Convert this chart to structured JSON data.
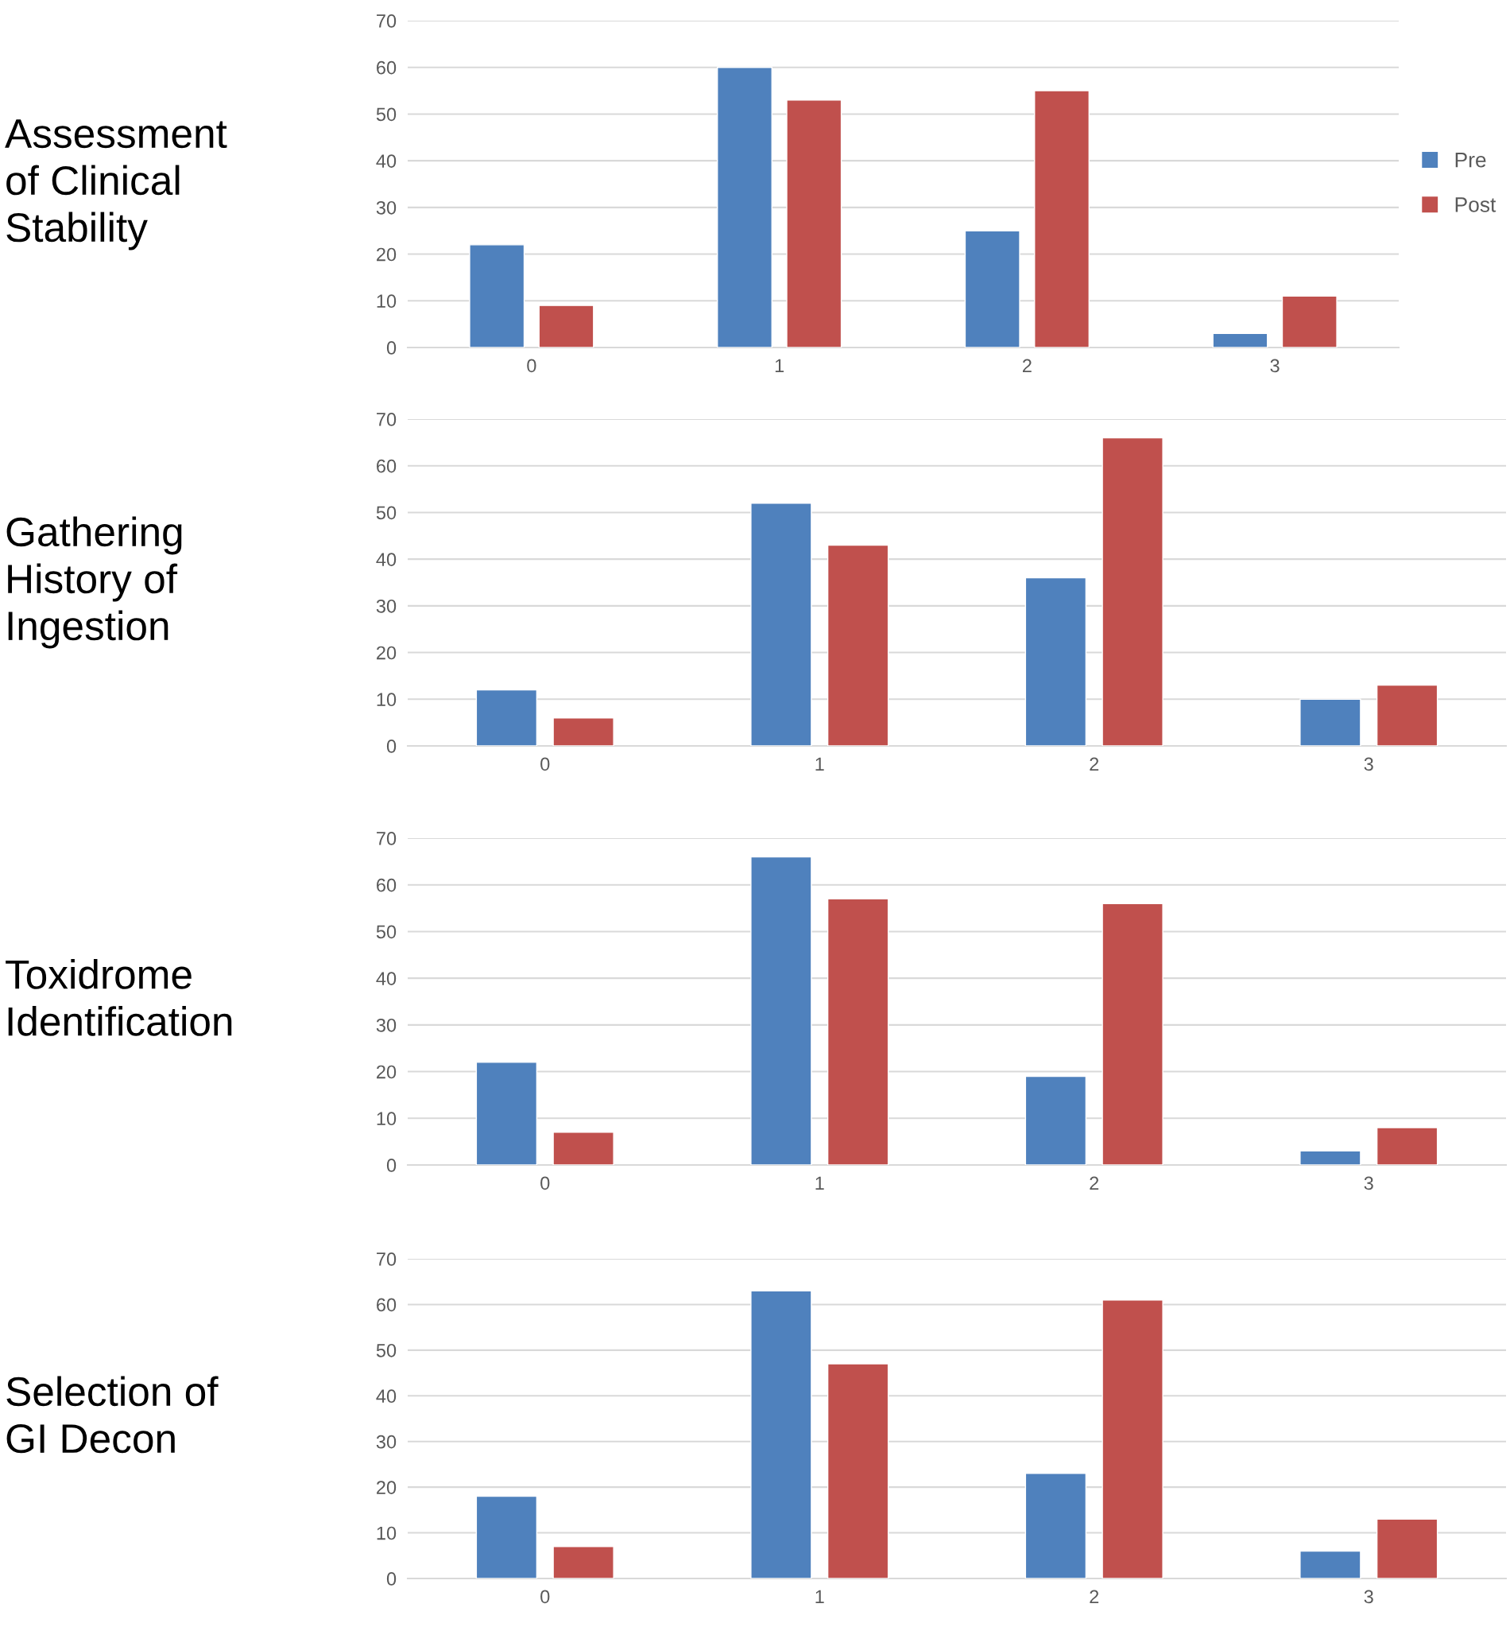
{
  "chart_data": [
    {
      "type": "bar",
      "title": "Assessment\nof Clinical\nStability",
      "categories": [
        "0",
        "1",
        "2",
        "3"
      ],
      "series": [
        {
          "name": "Pre",
          "color": "#4f81bd",
          "values": [
            22,
            60,
            25,
            3
          ]
        },
        {
          "name": "Post",
          "color": "#c0504d",
          "values": [
            9,
            53,
            55,
            11
          ]
        }
      ],
      "ylim": [
        0,
        70
      ],
      "yticks": [
        0,
        10,
        20,
        30,
        40,
        50,
        60,
        70
      ],
      "grid": "y",
      "legend": "right"
    },
    {
      "type": "bar",
      "title": "Gathering\nHistory of\nIngestion",
      "categories": [
        "0",
        "1",
        "2",
        "3"
      ],
      "series": [
        {
          "color": "#4f81bd",
          "values": [
            12,
            52,
            36,
            10
          ]
        },
        {
          "color": "#c0504d",
          "values": [
            6,
            43,
            66,
            13
          ]
        }
      ],
      "ylim": [
        0,
        70
      ],
      "yticks": [
        0,
        10,
        20,
        30,
        40,
        50,
        60,
        70
      ],
      "grid": "y"
    },
    {
      "type": "bar",
      "title": "Toxidrome\nIdentification",
      "categories": [
        "0",
        "1",
        "2",
        "3"
      ],
      "series": [
        {
          "color": "#4f81bd",
          "values": [
            22,
            66,
            19,
            3
          ]
        },
        {
          "color": "#c0504d",
          "values": [
            7,
            57,
            56,
            8
          ]
        }
      ],
      "ylim": [
        0,
        70
      ],
      "yticks": [
        0,
        10,
        20,
        30,
        40,
        50,
        60,
        70
      ],
      "grid": "y"
    },
    {
      "type": "bar",
      "title": "Selection of\nGI Decon",
      "categories": [
        "0",
        "1",
        "2",
        "3"
      ],
      "series": [
        {
          "color": "#4f81bd",
          "values": [
            18,
            63,
            23,
            6
          ]
        },
        {
          "color": "#c0504d",
          "values": [
            7,
            47,
            61,
            13
          ]
        }
      ],
      "ylim": [
        0,
        70
      ],
      "yticks": [
        0,
        10,
        20,
        30,
        40,
        50,
        60,
        70
      ],
      "grid": "y"
    }
  ]
}
